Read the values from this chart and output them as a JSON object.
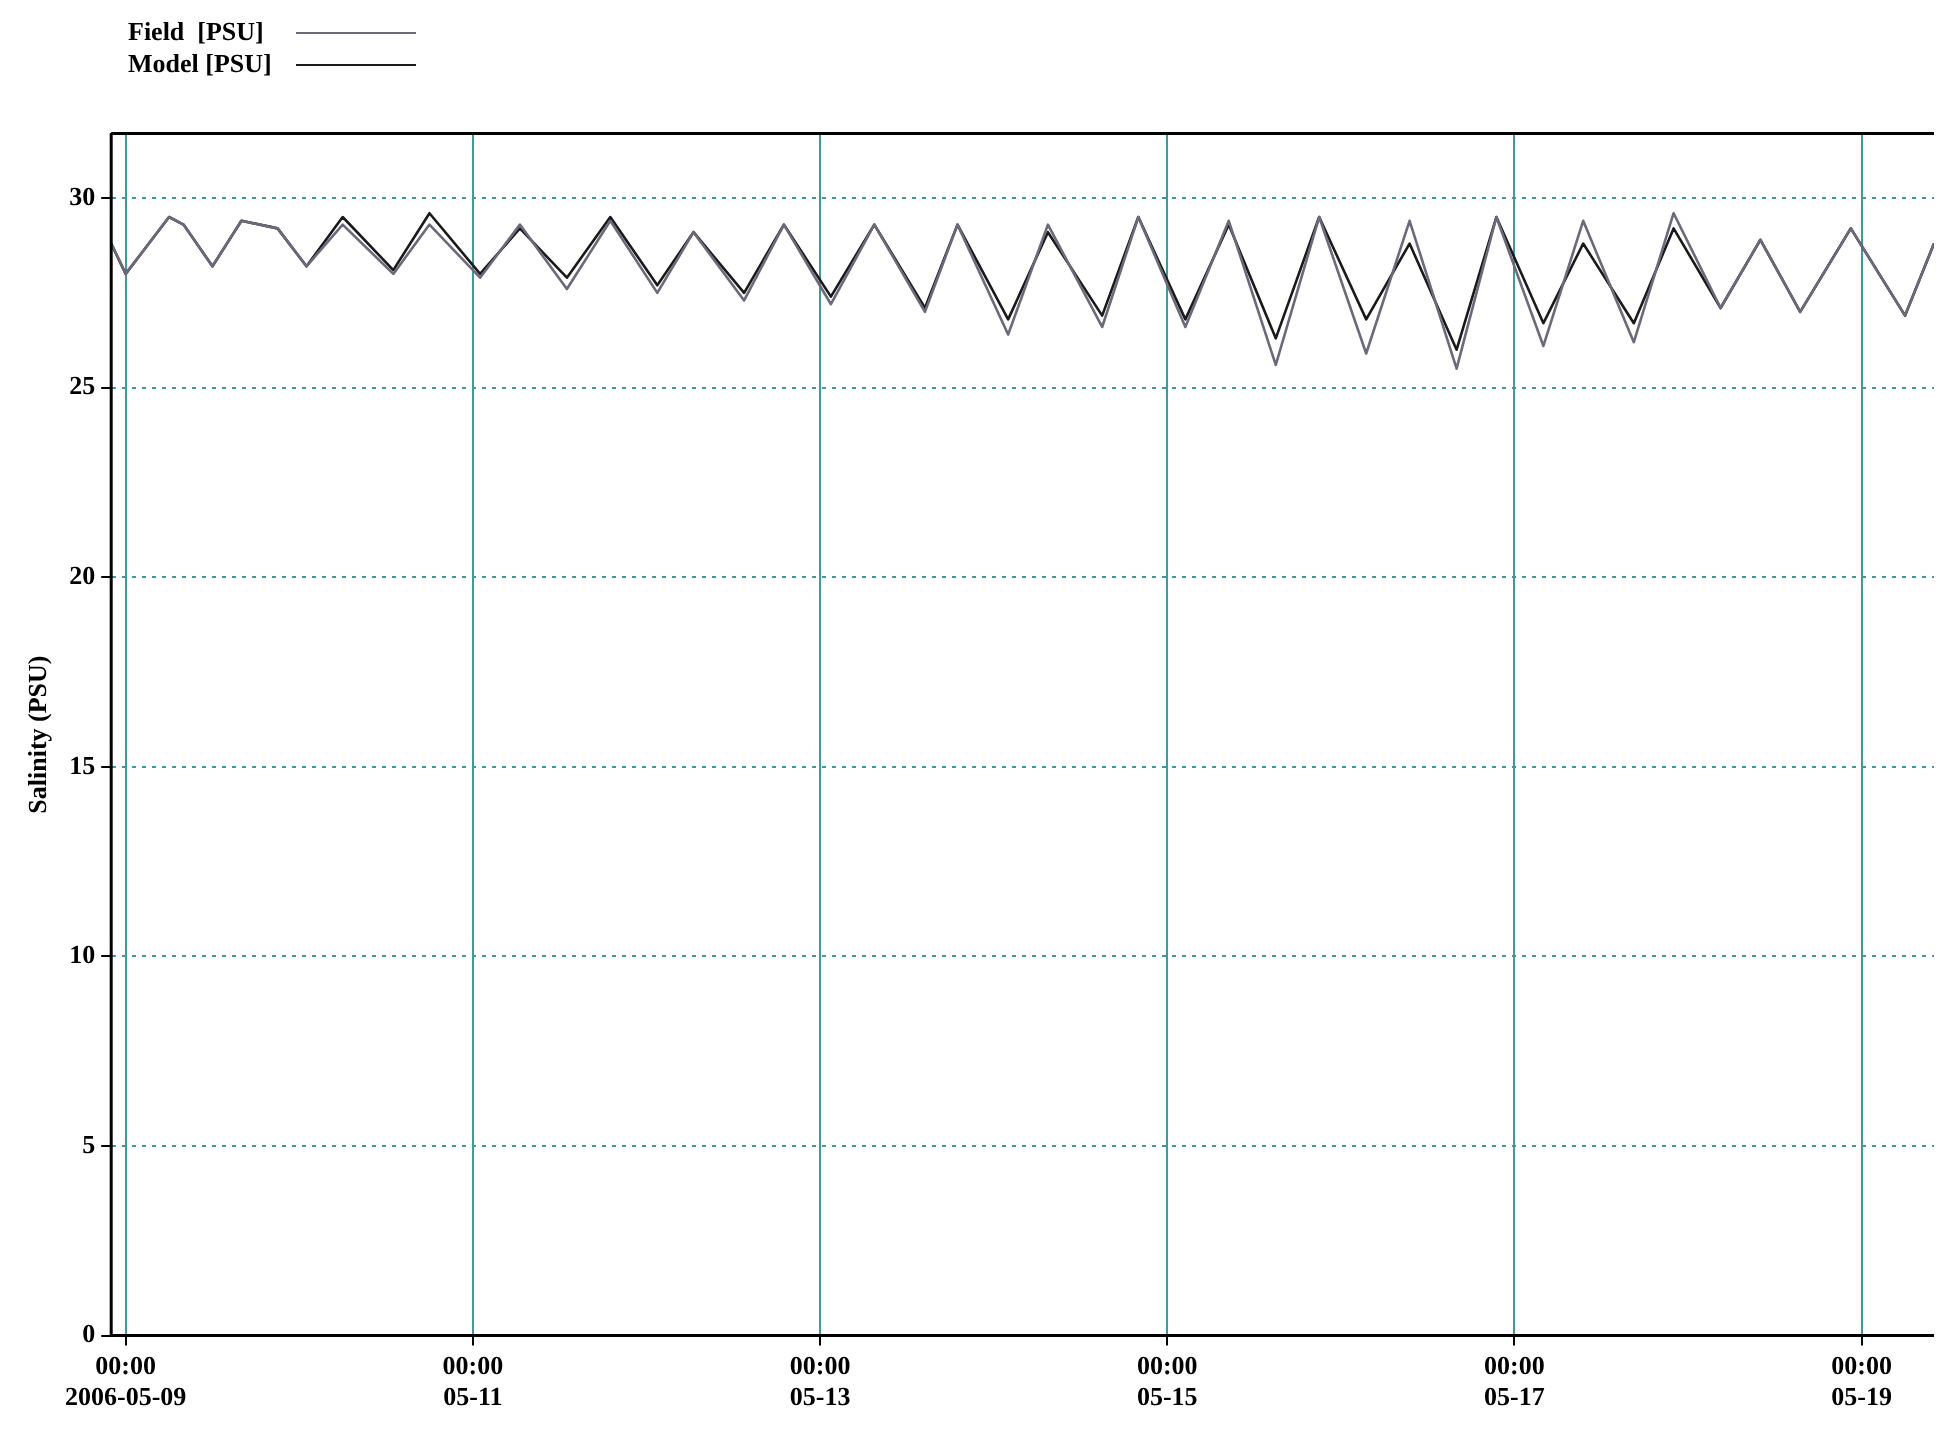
{
  "chart_data": {
    "type": "line",
    "ylabel": "Salinity (PSU)",
    "x": [
      "2006-05-08T22:00",
      "2006-05-09T00:00",
      "2006-05-09T06:00",
      "2006-05-09T08:00",
      "2006-05-09T12:00",
      "2006-05-09T16:00",
      "2006-05-09T21:00",
      "2006-05-10T01:00",
      "2006-05-10T06:00",
      "2006-05-10T13:00",
      "2006-05-10T18:00",
      "2006-05-11T01:00",
      "2006-05-11T06:30",
      "2006-05-11T13:00",
      "2006-05-11T19:00",
      "2006-05-12T01:30",
      "2006-05-12T06:30",
      "2006-05-12T13:30",
      "2006-05-12T19:00",
      "2006-05-13T01:30",
      "2006-05-13T07:30",
      "2006-05-13T14:30",
      "2006-05-13T19:00",
      "2006-05-14T02:00",
      "2006-05-14T07:30",
      "2006-05-14T15:00",
      "2006-05-14T20:00",
      "2006-05-15T02:30",
      "2006-05-15T08:30",
      "2006-05-15T15:00",
      "2006-05-15T21:00",
      "2006-05-16T03:30",
      "2006-05-16T09:30",
      "2006-05-16T16:00",
      "2006-05-16T21:30",
      "2006-05-17T04:00",
      "2006-05-17T09:30",
      "2006-05-17T16:30",
      "2006-05-17T22:00",
      "2006-05-18T04:30",
      "2006-05-18T10:00",
      "2006-05-18T15:30",
      "2006-05-18T22:30",
      "2006-05-19T06:00",
      "2006-05-19T10:00"
    ],
    "series": [
      {
        "name": "Field  [PSU]",
        "color": "#6a6a7a",
        "values": [
          28.8,
          28.0,
          29.5,
          29.3,
          28.2,
          29.4,
          29.2,
          28.2,
          29.3,
          28.0,
          29.3,
          27.9,
          29.3,
          27.6,
          29.4,
          27.5,
          29.1,
          27.3,
          29.3,
          27.2,
          29.3,
          27.0,
          29.3,
          26.4,
          29.3,
          26.6,
          29.5,
          26.6,
          29.4,
          25.6,
          29.5,
          25.9,
          29.4,
          25.5,
          29.5,
          26.1,
          29.4,
          26.2,
          29.6,
          27.1,
          28.9,
          27.0,
          29.2,
          26.9,
          28.8
        ]
      },
      {
        "name": "Model [PSU]",
        "color": "#1a1a1a",
        "values": [
          28.8,
          28.0,
          29.5,
          29.3,
          28.2,
          29.4,
          29.2,
          28.2,
          29.5,
          28.1,
          29.6,
          28.0,
          29.2,
          27.9,
          29.5,
          27.7,
          29.1,
          27.5,
          29.3,
          27.4,
          29.3,
          27.1,
          29.3,
          26.8,
          29.1,
          26.9,
          29.5,
          26.8,
          29.3,
          26.3,
          29.5,
          26.8,
          28.8,
          26.0,
          29.5,
          26.7,
          28.8,
          26.7,
          29.2,
          27.1,
          28.9,
          27.0,
          29.2,
          26.9,
          28.8
        ]
      }
    ],
    "xlim": [
      "2006-05-08T22:00",
      "2006-05-19T10:00"
    ],
    "xticks": [
      {
        "value": "2006-05-09T00:00",
        "label": "00:00\n2006-05-09"
      },
      {
        "value": "2006-05-11T00:00",
        "label": "00:00\n05-11"
      },
      {
        "value": "2006-05-13T00:00",
        "label": "00:00\n05-13"
      },
      {
        "value": "2006-05-15T00:00",
        "label": "00:00\n05-15"
      },
      {
        "value": "2006-05-17T00:00",
        "label": "00:00\n05-17"
      },
      {
        "value": "2006-05-19T00:00",
        "label": "00:00\n05-19"
      }
    ],
    "ylim": [
      0,
      31.7
    ],
    "yticks": [
      0,
      5,
      10,
      15,
      20,
      25,
      30
    ],
    "grid": true,
    "legend": "top left",
    "marker": "none",
    "line_style": "solid"
  }
}
